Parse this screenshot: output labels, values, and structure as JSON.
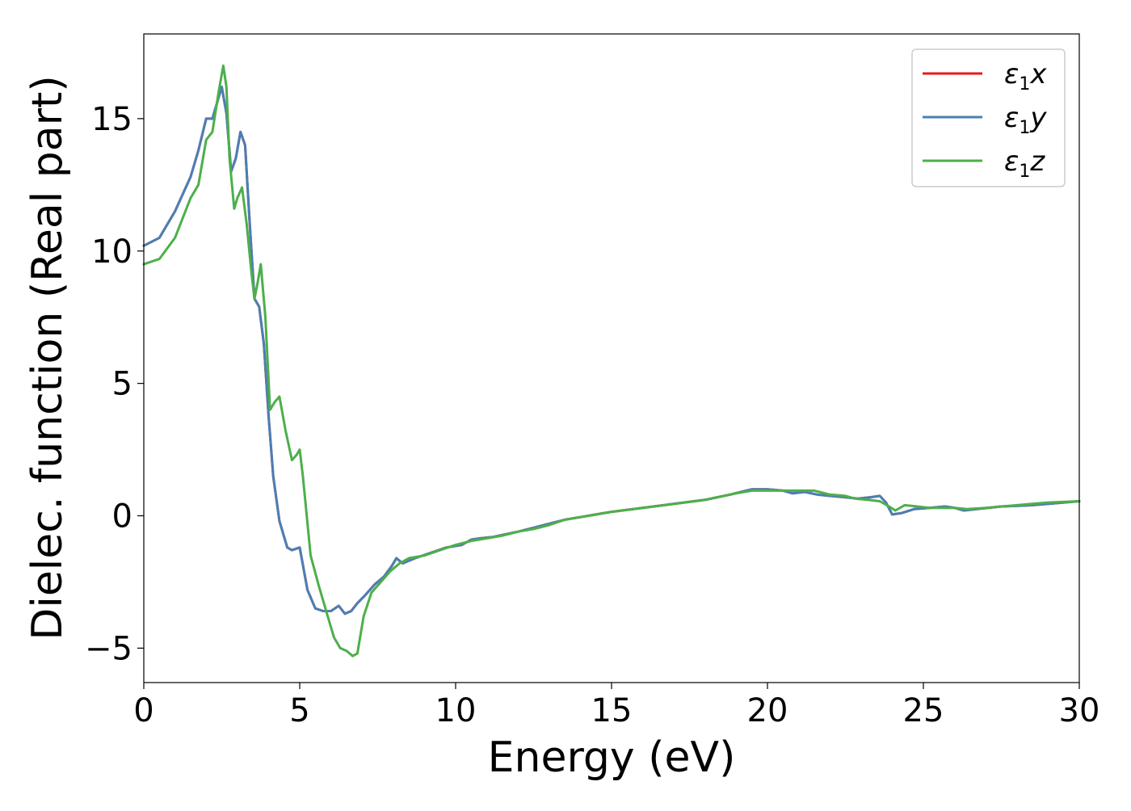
{
  "chart_data": {
    "type": "line",
    "title": "",
    "xlabel": "Energy (eV)",
    "ylabel": "Dielec. function (Real part)",
    "xlim": [
      0,
      30
    ],
    "ylim": [
      -6.3,
      18.2
    ],
    "xticks": [
      0,
      5,
      10,
      15,
      20,
      25,
      30
    ],
    "xtick_labels": [
      "0",
      "5",
      "10",
      "15",
      "20",
      "25",
      "30"
    ],
    "yticks": [
      -5,
      0,
      5,
      10,
      15
    ],
    "ytick_labels": [
      "−5",
      "0",
      "5",
      "10",
      "15"
    ],
    "grid": false,
    "legend_position": "top-right",
    "series": [
      {
        "name": "ε1x",
        "legend_base": "ε",
        "legend_sub": "1",
        "legend_var": "x",
        "color": "#e41a1c",
        "x": [
          0,
          0.5,
          1.0,
          1.5,
          1.75,
          2.0,
          2.2,
          2.35,
          2.5,
          2.65,
          2.8,
          2.95,
          3.1,
          3.25,
          3.4,
          3.55,
          3.7,
          3.85,
          4.0,
          4.15,
          4.35,
          4.6,
          4.75,
          5.0,
          5.25,
          5.5,
          5.75,
          6.0,
          6.25,
          6.45,
          6.65,
          6.85,
          7.1,
          7.4,
          7.7,
          7.95,
          8.1,
          8.3,
          8.7,
          9.2,
          9.7,
          10.2,
          10.5,
          10.8,
          11.2,
          11.6,
          12.0,
          12.5,
          13.0,
          13.5,
          14.0,
          14.5,
          15.0,
          16.0,
          17.0,
          18.0,
          18.8,
          19.5,
          20.0,
          20.5,
          20.8,
          21.2,
          21.6,
          22.0,
          22.5,
          22.9,
          23.3,
          23.6,
          23.8,
          24.0,
          24.3,
          24.7,
          25.2,
          25.7,
          26.0,
          26.3,
          26.7,
          27.5,
          28.5,
          29.5,
          30.0
        ],
        "y": [
          10.2,
          10.5,
          11.5,
          12.8,
          13.8,
          15.0,
          15.0,
          15.6,
          16.2,
          15.2,
          13.0,
          13.5,
          14.5,
          14.0,
          11.0,
          8.2,
          7.9,
          6.5,
          3.8,
          1.5,
          -0.2,
          -1.2,
          -1.3,
          -1.2,
          -2.8,
          -3.5,
          -3.6,
          -3.6,
          -3.4,
          -3.7,
          -3.6,
          -3.3,
          -3.0,
          -2.6,
          -2.3,
          -1.9,
          -1.6,
          -1.8,
          -1.6,
          -1.4,
          -1.2,
          -1.1,
          -0.9,
          -0.85,
          -0.8,
          -0.7,
          -0.6,
          -0.45,
          -0.3,
          -0.15,
          -0.05,
          0.05,
          0.15,
          0.3,
          0.45,
          0.6,
          0.8,
          1.0,
          1.0,
          0.95,
          0.85,
          0.9,
          0.8,
          0.75,
          0.7,
          0.65,
          0.7,
          0.75,
          0.5,
          0.05,
          0.1,
          0.25,
          0.3,
          0.35,
          0.3,
          0.2,
          0.25,
          0.35,
          0.4,
          0.5,
          0.55
        ]
      },
      {
        "name": "ε1y",
        "legend_base": "ε",
        "legend_sub": "1",
        "legend_var": "y",
        "color": "#4a7fb5",
        "x": [
          0,
          0.5,
          1.0,
          1.5,
          1.75,
          2.0,
          2.2,
          2.35,
          2.5,
          2.65,
          2.8,
          2.95,
          3.1,
          3.25,
          3.4,
          3.55,
          3.7,
          3.85,
          4.0,
          4.15,
          4.35,
          4.6,
          4.75,
          5.0,
          5.25,
          5.5,
          5.75,
          6.0,
          6.25,
          6.45,
          6.65,
          6.85,
          7.1,
          7.4,
          7.7,
          7.95,
          8.1,
          8.3,
          8.7,
          9.2,
          9.7,
          10.2,
          10.5,
          10.8,
          11.2,
          11.6,
          12.0,
          12.5,
          13.0,
          13.5,
          14.0,
          14.5,
          15.0,
          16.0,
          17.0,
          18.0,
          18.8,
          19.5,
          20.0,
          20.5,
          20.8,
          21.2,
          21.6,
          22.0,
          22.5,
          22.9,
          23.3,
          23.6,
          23.8,
          24.0,
          24.3,
          24.7,
          25.2,
          25.7,
          26.0,
          26.3,
          26.7,
          27.5,
          28.5,
          29.5,
          30.0
        ],
        "y": [
          10.2,
          10.5,
          11.5,
          12.8,
          13.8,
          15.0,
          15.0,
          15.6,
          16.2,
          15.2,
          13.0,
          13.5,
          14.5,
          14.0,
          11.0,
          8.2,
          7.9,
          6.5,
          3.8,
          1.5,
          -0.2,
          -1.2,
          -1.3,
          -1.2,
          -2.8,
          -3.5,
          -3.6,
          -3.6,
          -3.4,
          -3.7,
          -3.6,
          -3.3,
          -3.0,
          -2.6,
          -2.3,
          -1.9,
          -1.6,
          -1.8,
          -1.6,
          -1.4,
          -1.2,
          -1.1,
          -0.9,
          -0.85,
          -0.8,
          -0.7,
          -0.6,
          -0.45,
          -0.3,
          -0.15,
          -0.05,
          0.05,
          0.15,
          0.3,
          0.45,
          0.6,
          0.8,
          1.0,
          1.0,
          0.95,
          0.85,
          0.9,
          0.8,
          0.75,
          0.7,
          0.65,
          0.7,
          0.75,
          0.5,
          0.05,
          0.1,
          0.25,
          0.3,
          0.35,
          0.3,
          0.2,
          0.25,
          0.35,
          0.4,
          0.5,
          0.55
        ]
      },
      {
        "name": "ε1z",
        "legend_base": "ε",
        "legend_sub": "1",
        "legend_var": "z",
        "color": "#4daf4a",
        "x": [
          0,
          0.5,
          1.0,
          1.5,
          1.75,
          2.0,
          2.2,
          2.4,
          2.55,
          2.65,
          2.75,
          2.9,
          3.0,
          3.15,
          3.3,
          3.45,
          3.55,
          3.65,
          3.75,
          3.9,
          4.05,
          4.2,
          4.35,
          4.55,
          4.75,
          4.9,
          5.0,
          5.1,
          5.35,
          5.6,
          5.9,
          6.1,
          6.3,
          6.5,
          6.7,
          6.85,
          7.05,
          7.3,
          7.6,
          7.9,
          8.2,
          8.5,
          9.0,
          9.5,
          10.0,
          10.5,
          11.0,
          11.5,
          12.0,
          12.5,
          13.0,
          13.5,
          14.0,
          15.0,
          16.0,
          17.0,
          18.0,
          19.0,
          19.5,
          20.0,
          20.5,
          21.0,
          21.5,
          22.0,
          22.5,
          22.8,
          23.2,
          23.6,
          23.9,
          24.1,
          24.4,
          24.8,
          25.2,
          25.7,
          26.0,
          26.4,
          27.0,
          28.0,
          29.0,
          30.0
        ],
        "y": [
          9.5,
          9.7,
          10.5,
          12.0,
          12.5,
          14.2,
          14.5,
          16.0,
          17.0,
          16.2,
          13.5,
          11.6,
          12.0,
          12.4,
          11.0,
          9.2,
          8.2,
          8.8,
          9.5,
          7.5,
          4.0,
          4.3,
          4.5,
          3.2,
          2.1,
          2.3,
          2.5,
          1.5,
          -1.5,
          -2.6,
          -3.8,
          -4.6,
          -5.0,
          -5.1,
          -5.3,
          -5.2,
          -3.8,
          -2.9,
          -2.5,
          -2.1,
          -1.8,
          -1.6,
          -1.5,
          -1.3,
          -1.1,
          -0.95,
          -0.85,
          -0.75,
          -0.6,
          -0.5,
          -0.35,
          -0.15,
          -0.05,
          0.15,
          0.3,
          0.45,
          0.6,
          0.85,
          0.95,
          0.95,
          0.95,
          0.95,
          0.95,
          0.8,
          0.75,
          0.65,
          0.6,
          0.55,
          0.35,
          0.2,
          0.4,
          0.35,
          0.3,
          0.3,
          0.3,
          0.25,
          0.3,
          0.4,
          0.5,
          0.55
        ]
      }
    ]
  }
}
